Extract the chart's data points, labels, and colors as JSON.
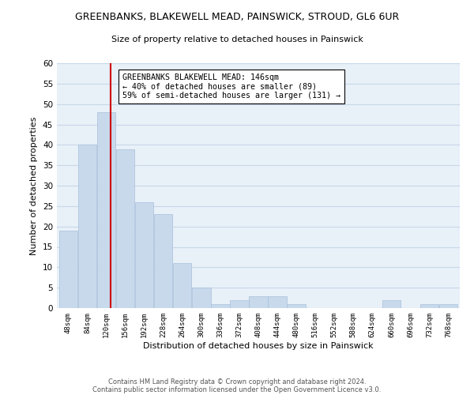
{
  "title": "GREENBANKS, BLAKEWELL MEAD, PAINSWICK, STROUD, GL6 6UR",
  "subtitle": "Size of property relative to detached houses in Painswick",
  "xlabel": "Distribution of detached houses by size in Painswick",
  "ylabel": "Number of detached properties",
  "bar_color": "#c8d9ec",
  "bar_edge_color": "#a8c0da",
  "grid_color": "#c8d8e8",
  "background_color": "#e8f0f8",
  "marker_line_color": "#cc0000",
  "marker_value": 146,
  "annotation_title": "GREENBANKS BLAKEWELL MEAD: 146sqm",
  "annotation_line1": "← 40% of detached houses are smaller (89)",
  "annotation_line2": "59% of semi-detached houses are larger (131) →",
  "bins": [
    48,
    84,
    120,
    156,
    192,
    228,
    264,
    300,
    336,
    372,
    408,
    444,
    480,
    516,
    552,
    588,
    624,
    660,
    696,
    732,
    768
  ],
  "counts": [
    19,
    40,
    48,
    39,
    26,
    23,
    11,
    5,
    1,
    2,
    3,
    3,
    1,
    0,
    0,
    0,
    0,
    2,
    0,
    1,
    1
  ],
  "ylim": [
    0,
    60
  ],
  "yticks": [
    0,
    5,
    10,
    15,
    20,
    25,
    30,
    35,
    40,
    45,
    50,
    55,
    60
  ],
  "footer_line1": "Contains HM Land Registry data © Crown copyright and database right 2024.",
  "footer_line2": "Contains public sector information licensed under the Open Government Licence v3.0."
}
